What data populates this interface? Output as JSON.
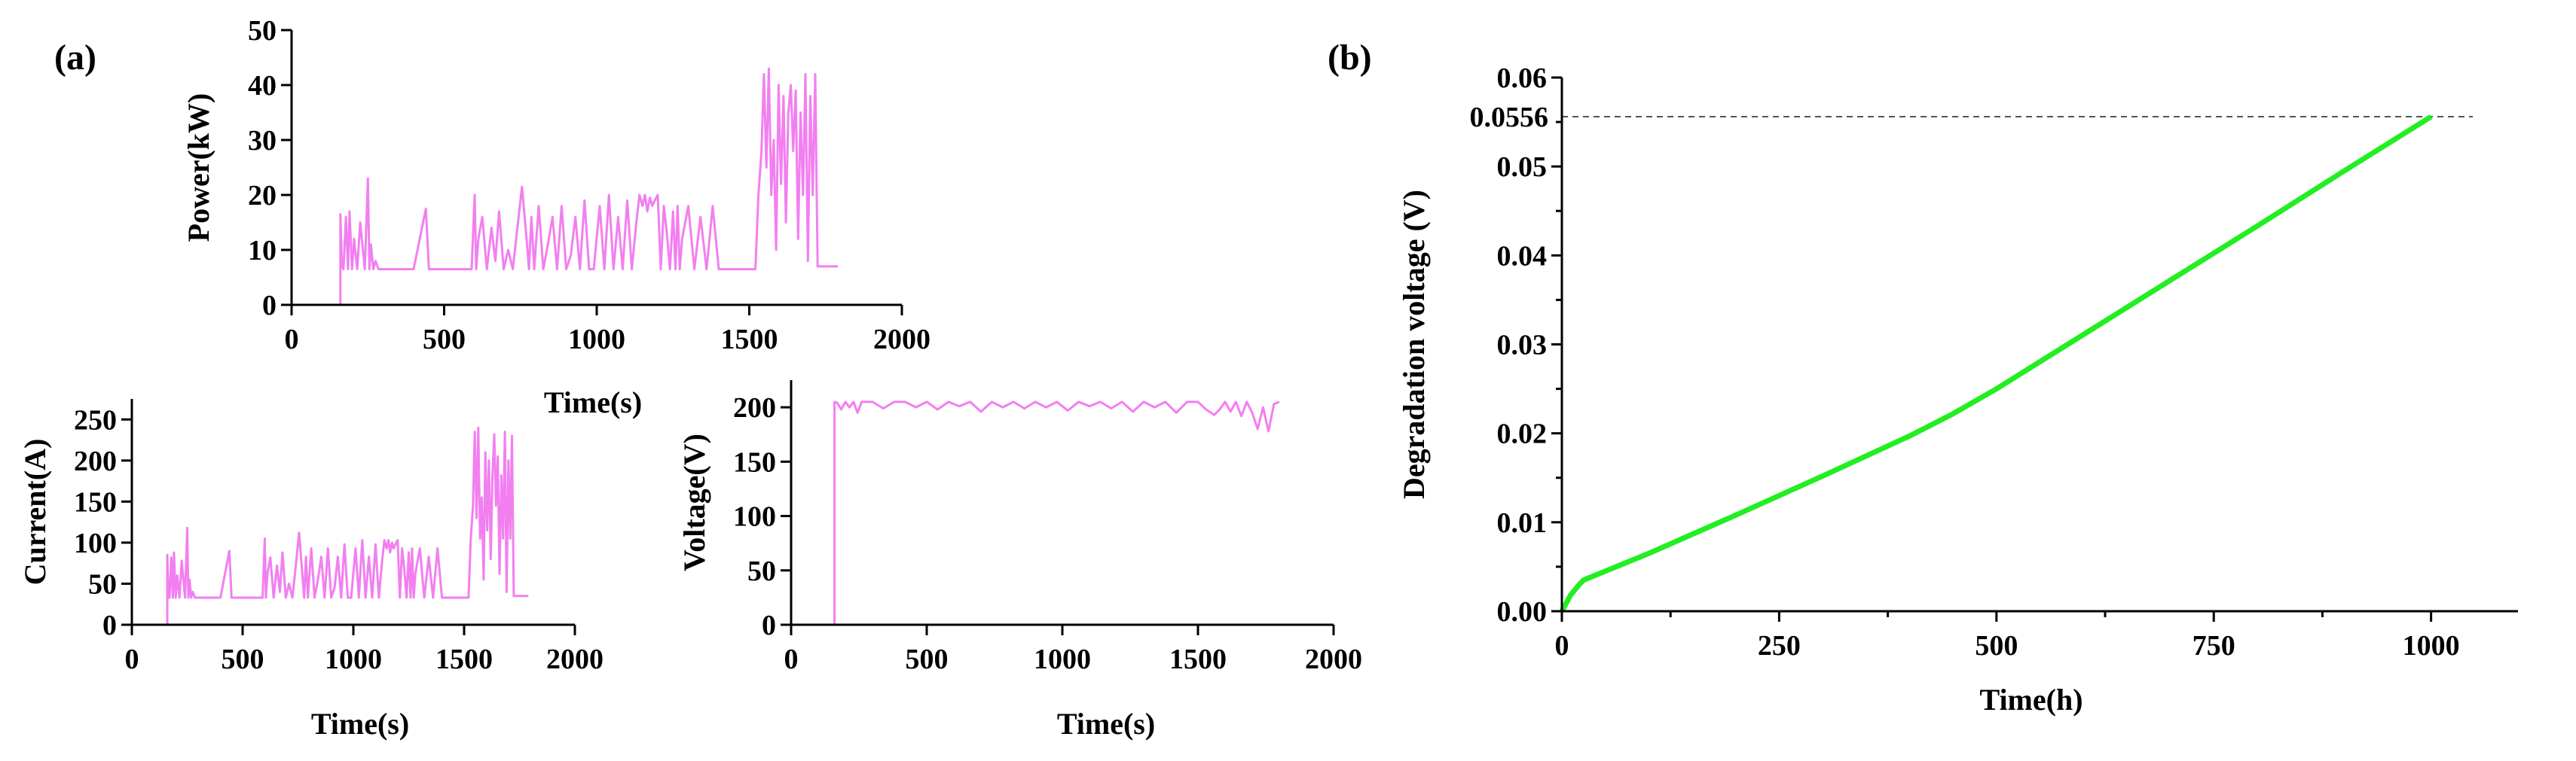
{
  "panel_labels": {
    "a": "(a)",
    "b": "(b)"
  },
  "chart_data": [
    {
      "id": "power",
      "type": "line",
      "panel": "(a)",
      "xlabel": "Time(s)",
      "ylabel": "Power(kW)",
      "xlim": [
        0,
        2000
      ],
      "ylim": [
        0,
        50
      ],
      "xticks": [
        0,
        500,
        1000,
        1500,
        2000
      ],
      "yticks": [
        0,
        10,
        20,
        30,
        40,
        50
      ],
      "color": "#f27ff0",
      "series": [
        {
          "name": "Power",
          "x": [
            160,
            160,
            165,
            170,
            178,
            185,
            190,
            198,
            205,
            215,
            225,
            240,
            250,
            255,
            260,
            268,
            275,
            285,
            300,
            400,
            440,
            450,
            460,
            500,
            550,
            590,
            600,
            605,
            612,
            625,
            640,
            655,
            668,
            680,
            695,
            710,
            725,
            740,
            755,
            770,
            778,
            786,
            795,
            810,
            825,
            840,
            855,
            870,
            885,
            900,
            915,
            930,
            945,
            960,
            975,
            990,
            1010,
            1025,
            1040,
            1055,
            1070,
            1085,
            1100,
            1115,
            1130,
            1140,
            1150,
            1158,
            1166,
            1174,
            1182,
            1190,
            1200,
            1210,
            1220,
            1230,
            1240,
            1250,
            1258,
            1265,
            1272,
            1280,
            1300,
            1320,
            1340,
            1360,
            1380,
            1400,
            1420,
            1440,
            1460,
            1480,
            1500,
            1520,
            1530,
            1540,
            1548,
            1556,
            1564,
            1572,
            1580,
            1588,
            1596,
            1604,
            1612,
            1620,
            1628,
            1636,
            1644,
            1652,
            1660,
            1668,
            1676,
            1684,
            1692,
            1700,
            1708,
            1716,
            1724,
            1730,
            1735,
            1745,
            1760,
            1790
          ],
          "y": [
            0,
            16.5,
            7,
            6.5,
            16,
            6.5,
            17,
            6.5,
            12,
            6.5,
            15,
            6.5,
            23,
            6.5,
            11,
            6.5,
            8,
            6.5,
            6.5,
            6.5,
            17.5,
            6.5,
            6.5,
            6.5,
            6.5,
            6.5,
            20,
            6.5,
            12,
            16,
            6.5,
            14,
            8,
            17,
            6.5,
            10,
            6.5,
            14,
            21.5,
            12,
            6.5,
            16,
            6.5,
            18,
            6.5,
            11,
            16,
            6.5,
            18,
            6.5,
            9,
            16,
            6.5,
            19,
            6.5,
            6.5,
            18,
            6.5,
            20,
            6.5,
            16,
            6.5,
            19,
            6.5,
            15,
            20,
            18,
            20,
            17,
            19.5,
            18,
            19,
            20,
            6.5,
            18,
            13,
            6.5,
            17,
            6.5,
            18,
            6.5,
            12,
            18,
            6.5,
            16,
            6.5,
            18,
            6.5,
            6.5,
            6.5,
            6.5,
            6.5,
            6.5,
            6.5,
            20,
            28,
            42,
            25,
            43,
            20,
            30,
            10,
            40,
            22,
            38,
            15,
            35,
            40,
            28,
            39,
            12,
            35,
            20,
            42,
            8,
            38,
            20,
            42,
            7,
            7,
            7,
            7,
            7,
            7
          ]
        }
      ]
    },
    {
      "id": "current",
      "type": "line",
      "panel": "(a)",
      "xlabel": "Time(s)",
      "ylabel": "Current(A)",
      "xlim": [
        0,
        2000
      ],
      "ylim": [
        0,
        275
      ],
      "xticks": [
        0,
        500,
        1000,
        1500,
        2000
      ],
      "yticks": [
        0,
        50,
        100,
        150,
        200,
        250
      ],
      "color": "#f27ff0",
      "series": [
        {
          "name": "Current",
          "x": [
            0,
            160,
            160,
            165,
            170,
            178,
            185,
            190,
            198,
            205,
            215,
            225,
            240,
            250,
            255,
            260,
            268,
            275,
            285,
            300,
            400,
            440,
            450,
            460,
            500,
            550,
            590,
            600,
            605,
            612,
            625,
            640,
            655,
            668,
            680,
            695,
            710,
            725,
            740,
            755,
            770,
            778,
            786,
            795,
            810,
            825,
            840,
            855,
            870,
            885,
            900,
            915,
            930,
            945,
            960,
            975,
            990,
            1010,
            1025,
            1040,
            1055,
            1070,
            1085,
            1100,
            1115,
            1130,
            1140,
            1150,
            1158,
            1166,
            1174,
            1182,
            1190,
            1200,
            1210,
            1220,
            1230,
            1240,
            1250,
            1258,
            1265,
            1272,
            1280,
            1300,
            1320,
            1340,
            1360,
            1380,
            1400,
            1420,
            1440,
            1460,
            1480,
            1500,
            1520,
            1530,
            1540,
            1548,
            1556,
            1564,
            1572,
            1580,
            1588,
            1596,
            1604,
            1612,
            1620,
            1628,
            1636,
            1644,
            1652,
            1660,
            1668,
            1676,
            1684,
            1692,
            1700,
            1708,
            1716,
            1724,
            1730,
            1735,
            1745,
            1760,
            1790
          ],
          "y": [
            0,
            0,
            85,
            33,
            33,
            82,
            33,
            88,
            33,
            60,
            33,
            78,
            33,
            118,
            33,
            55,
            33,
            40,
            33,
            33,
            33,
            90,
            33,
            33,
            33,
            33,
            33,
            105,
            33,
            62,
            82,
            33,
            72,
            40,
            88,
            33,
            50,
            33,
            72,
            112,
            60,
            33,
            83,
            33,
            93,
            33,
            55,
            83,
            33,
            93,
            33,
            45,
            83,
            33,
            98,
            33,
            33,
            93,
            33,
            103,
            33,
            83,
            33,
            98,
            33,
            78,
            103,
            93,
            103,
            88,
            100,
            93,
            98,
            103,
            33,
            93,
            68,
            33,
            88,
            33,
            93,
            33,
            62,
            93,
            33,
            83,
            33,
            93,
            33,
            33,
            33,
            33,
            33,
            33,
            33,
            105,
            145,
            235,
            130,
            240,
            105,
            155,
            55,
            210,
            115,
            200,
            80,
            182,
            232,
            145,
            205,
            62,
            182,
            105,
            235,
            40,
            200,
            105,
            230,
            35,
            35,
            35,
            35,
            35,
            35
          ]
        }
      ]
    },
    {
      "id": "voltage",
      "type": "line",
      "panel": "(a)",
      "xlabel": "Time(s)",
      "ylabel": "Voltage(V)",
      "xlim": [
        0,
        2000
      ],
      "ylim": [
        0,
        225
      ],
      "xticks": [
        0,
        500,
        1000,
        1500,
        2000
      ],
      "yticks": [
        0,
        50,
        100,
        150,
        200
      ],
      "color": "#f27ff0",
      "series": [
        {
          "name": "Voltage",
          "x": [
            160,
            160,
            170,
            185,
            200,
            215,
            230,
            245,
            260,
            300,
            340,
            380,
            420,
            460,
            500,
            540,
            580,
            620,
            660,
            700,
            740,
            780,
            820,
            860,
            900,
            940,
            980,
            1020,
            1060,
            1100,
            1140,
            1180,
            1220,
            1260,
            1300,
            1340,
            1380,
            1420,
            1460,
            1500,
            1530,
            1560,
            1580,
            1600,
            1620,
            1640,
            1660,
            1680,
            1700,
            1720,
            1740,
            1760,
            1780,
            1800
          ],
          "y": [
            0,
            205,
            204,
            198,
            205,
            200,
            205,
            195,
            205,
            205,
            199,
            205,
            205,
            200,
            205,
            198,
            205,
            201,
            205,
            196,
            205,
            200,
            205,
            199,
            205,
            200,
            205,
            197,
            205,
            201,
            205,
            199,
            205,
            196,
            205,
            200,
            205,
            195,
            205,
            205,
            198,
            193,
            198,
            205,
            196,
            205,
            192,
            205,
            195,
            180,
            200,
            178,
            203,
            205
          ]
        }
      ]
    },
    {
      "id": "degradation",
      "type": "line",
      "panel": "(b)",
      "xlabel": "Time(h)",
      "ylabel": "Degradation voltage (V)",
      "xlim": [
        0,
        1100
      ],
      "ylim": [
        0,
        0.06
      ],
      "xticks": [
        0,
        250,
        500,
        750,
        1000
      ],
      "yticks": [
        0.0,
        0.01,
        0.02,
        0.03,
        0.04,
        0.05,
        0.06
      ],
      "ytick_labels": [
        "0.00",
        "0.01",
        "0.02",
        "0.03",
        "0.04",
        "0.05",
        "0.06"
      ],
      "annotation": {
        "label": "0.0556",
        "y": 0.0556,
        "style": "dashed reference line"
      },
      "color": "#22ee22",
      "series": [
        {
          "name": "Degradation voltage",
          "x": [
            0,
            10,
            20,
            25,
            100,
            200,
            300,
            400,
            450,
            500,
            600,
            700,
            800,
            900,
            1000
          ],
          "y": [
            0,
            0.0018,
            0.003,
            0.0035,
            0.0065,
            0.0108,
            0.0152,
            0.0197,
            0.0222,
            0.025,
            0.0311,
            0.0372,
            0.0433,
            0.0495,
            0.0556
          ]
        }
      ]
    }
  ]
}
